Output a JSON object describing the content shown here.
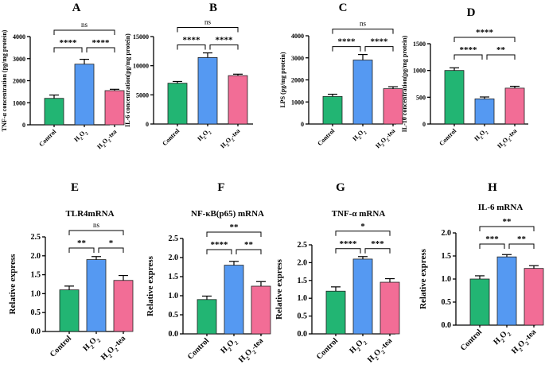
{
  "colors": {
    "control": "#22b573",
    "h2o2": "#5599f2",
    "h2o2_tea": "#f26d96"
  },
  "categories": [
    "Control",
    "H2O2",
    "H2O2-tea"
  ],
  "chart_data": [
    {
      "letter": "A",
      "type": "bar",
      "title": "",
      "ylabel": "TNF-α concentration (pg/mg protein)",
      "ylim": [
        0,
        4000
      ],
      "yticks": [
        "0",
        "1000",
        "2000",
        "3000",
        "4000"
      ],
      "values": [
        1200,
        2750,
        1550
      ],
      "errors": [
        150,
        220,
        60
      ],
      "comparisons": [
        {
          "pair": [
            0,
            1
          ],
          "label": "****"
        },
        {
          "pair": [
            1,
            2
          ],
          "label": "****"
        },
        {
          "pair": [
            0,
            2
          ],
          "label": "ns"
        }
      ]
    },
    {
      "letter": "B",
      "type": "bar",
      "title": "",
      "ylabel": "IL-6 concentration(pg/mg protein)",
      "ylim": [
        0,
        15000
      ],
      "yticks": [
        "0",
        "5000",
        "10000",
        "15000"
      ],
      "values": [
        7000,
        11400,
        8300
      ],
      "errors": [
        300,
        800,
        250
      ],
      "comparisons": [
        {
          "pair": [
            0,
            1
          ],
          "label": "****"
        },
        {
          "pair": [
            1,
            2
          ],
          "label": "****"
        },
        {
          "pair": [
            0,
            2
          ],
          "label": "ns"
        }
      ]
    },
    {
      "letter": "C",
      "type": "bar",
      "title": "",
      "ylabel": "LPS (pg/mg protein)",
      "ylim": [
        0,
        4000
      ],
      "yticks": [
        "0",
        "1000",
        "2000",
        "3000",
        "4000"
      ],
      "values": [
        1250,
        2900,
        1600
      ],
      "errors": [
        100,
        250,
        90
      ],
      "comparisons": [
        {
          "pair": [
            0,
            1
          ],
          "label": "****"
        },
        {
          "pair": [
            1,
            2
          ],
          "label": "****"
        },
        {
          "pair": [
            0,
            2
          ],
          "label": "ns"
        }
      ]
    },
    {
      "letter": "D",
      "type": "bar",
      "title": "",
      "ylabel": "IL-10 concentration(pg/mg protein)",
      "ylim": [
        0,
        1500
      ],
      "yticks": [
        "0",
        "500",
        "1000",
        "1500"
      ],
      "values": [
        1000,
        470,
        670
      ],
      "errors": [
        50,
        35,
        35
      ],
      "comparisons": [
        {
          "pair": [
            0,
            1
          ],
          "label": "****"
        },
        {
          "pair": [
            1,
            2
          ],
          "label": "**"
        },
        {
          "pair": [
            0,
            2
          ],
          "label": "****"
        }
      ]
    },
    {
      "letter": "E",
      "type": "bar",
      "title": "TLR4mRNA",
      "ylabel": "Relative express",
      "ylim": [
        0,
        2.5
      ],
      "yticks": [
        "0.0",
        "0.5",
        "1.0",
        "1.5",
        "2.0",
        "2.5"
      ],
      "values": [
        1.1,
        1.9,
        1.35
      ],
      "errors": [
        0.1,
        0.08,
        0.13
      ],
      "comparisons": [
        {
          "pair": [
            0,
            1
          ],
          "label": "**"
        },
        {
          "pair": [
            1,
            2
          ],
          "label": "*"
        },
        {
          "pair": [
            0,
            2
          ],
          "label": "ns"
        }
      ]
    },
    {
      "letter": "F",
      "type": "bar",
      "title": "NF-κB(p65) mRNA",
      "ylabel": "Relative express",
      "ylim": [
        0,
        2.5
      ],
      "yticks": [
        "0.0",
        "0.5",
        "1.0",
        "1.5",
        "2.0",
        "2.5"
      ],
      "values": [
        0.9,
        1.8,
        1.25
      ],
      "errors": [
        0.09,
        0.1,
        0.12
      ],
      "comparisons": [
        {
          "pair": [
            0,
            1
          ],
          "label": "****"
        },
        {
          "pair": [
            1,
            2
          ],
          "label": "**"
        },
        {
          "pair": [
            0,
            2
          ],
          "label": "**"
        }
      ]
    },
    {
      "letter": "G",
      "type": "bar",
      "title": "TNF-α mRNA",
      "ylabel": "Relative express",
      "ylim": [
        0,
        2.5
      ],
      "yticks": [
        "0.0",
        "0.5",
        "1.0",
        "1.5",
        "2.0",
        "2.5"
      ],
      "values": [
        1.2,
        2.1,
        1.45
      ],
      "errors": [
        0.12,
        0.07,
        0.1
      ],
      "comparisons": [
        {
          "pair": [
            0,
            1
          ],
          "label": "****"
        },
        {
          "pair": [
            1,
            2
          ],
          "label": "***"
        },
        {
          "pair": [
            0,
            2
          ],
          "label": "*"
        }
      ]
    },
    {
      "letter": "H",
      "type": "bar",
      "title": "IL-6 mRNA",
      "ylabel": "Relative express",
      "ylim": [
        0,
        2.0
      ],
      "yticks": [
        "0.0",
        "0.5",
        "1.0",
        "1.5",
        "2.0"
      ],
      "values": [
        1.0,
        1.48,
        1.23
      ],
      "errors": [
        0.07,
        0.05,
        0.06
      ],
      "comparisons": [
        {
          "pair": [
            0,
            1
          ],
          "label": "***"
        },
        {
          "pair": [
            1,
            2
          ],
          "label": "**"
        },
        {
          "pair": [
            0,
            2
          ],
          "label": "**"
        }
      ]
    }
  ]
}
